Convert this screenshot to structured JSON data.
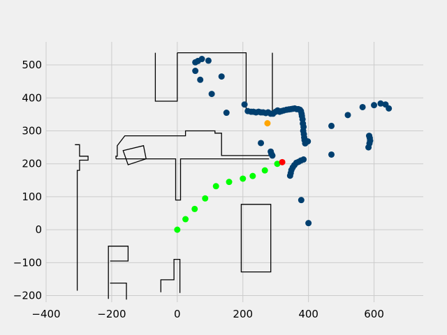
{
  "chart_data": {
    "type": "scatter",
    "title": "",
    "xlabel": "",
    "ylabel": "",
    "xlim": [
      -400,
      750
    ],
    "ylim": [
      -220,
      570
    ],
    "grid": true,
    "background": "#f0f0f0",
    "grid_color": "#cbcbcb",
    "x_ticks": [
      -400,
      -200,
      0,
      200,
      400,
      600
    ],
    "y_ticks": [
      -200,
      -100,
      0,
      100,
      200,
      300,
      400,
      500
    ],
    "x_tick_labels": [
      "−400",
      "−200",
      "0",
      "200",
      "400",
      "600"
    ],
    "y_tick_labels": [
      "−200",
      "−100",
      "0",
      "100",
      "200",
      "300",
      "400",
      "500"
    ],
    "map_outline": {
      "color": "#000000",
      "polylines": [
        [
          [
            -67,
            537
          ],
          [
            -67,
            390
          ],
          [
            0,
            390
          ],
          [
            0,
            537
          ]
        ],
        [
          [
            0,
            537
          ],
          [
            210,
            537
          ],
          [
            210,
            355
          ]
        ],
        [
          [
            290,
            537
          ],
          [
            290,
            350
          ]
        ],
        [
          [
            -312,
            258
          ],
          [
            -298,
            258
          ],
          [
            -298,
            223
          ],
          [
            -272,
            223
          ],
          [
            -272,
            211
          ],
          [
            -298,
            211
          ],
          [
            -298,
            180
          ],
          [
            -305,
            180
          ],
          [
            -305,
            -185
          ]
        ],
        [
          [
            -187,
            215
          ],
          [
            -187,
            223
          ],
          [
            -183,
            223
          ],
          [
            -183,
            255
          ],
          [
            -160,
            285
          ],
          [
            25,
            285
          ],
          [
            25,
            300
          ],
          [
            115,
            300
          ],
          [
            115,
            293
          ],
          [
            135,
            293
          ],
          [
            135,
            225
          ],
          [
            290,
            225
          ]
        ],
        [
          [
            -187,
            215
          ],
          [
            -5,
            215
          ],
          [
            -5,
            90
          ],
          [
            10,
            90
          ],
          [
            10,
            215
          ],
          [
            280,
            215
          ]
        ],
        [
          [
            -210,
            -210
          ],
          [
            -210,
            -50
          ],
          [
            -150,
            -50
          ],
          [
            -150,
            -95
          ],
          [
            -205,
            -95
          ]
        ],
        [
          [
            -205,
            -162
          ],
          [
            -155,
            -162
          ],
          [
            -155,
            -212
          ]
        ],
        [
          [
            -50,
            -190
          ],
          [
            -50,
            -152
          ],
          [
            -10,
            -152
          ],
          [
            -10,
            -90
          ],
          [
            8,
            -90
          ],
          [
            8,
            -192
          ]
        ]
      ],
      "polygons": [
        [
          [
            -165,
            240
          ],
          [
            -103,
            255
          ],
          [
            -95,
            215
          ],
          [
            -150,
            197
          ]
        ],
        [
          [
            195,
            77
          ],
          [
            285,
            77
          ],
          [
            285,
            -128
          ],
          [
            195,
            -128
          ]
        ]
      ]
    },
    "series": [
      {
        "role": "observations",
        "color": "#003f6f",
        "points": [
          [
            55,
            508
          ],
          [
            63,
            512
          ],
          [
            75,
            518
          ],
          [
            95,
            513
          ],
          [
            55,
            482
          ],
          [
            70,
            455
          ],
          [
            135,
            465
          ],
          [
            105,
            412
          ],
          [
            150,
            355
          ],
          [
            205,
            380
          ],
          [
            215,
            360
          ],
          [
            225,
            358
          ],
          [
            232,
            358
          ],
          [
            240,
            356
          ],
          [
            248,
            358
          ],
          [
            255,
            356
          ],
          [
            262,
            356
          ],
          [
            270,
            354
          ],
          [
            277,
            356
          ],
          [
            285,
            352
          ],
          [
            292,
            352
          ],
          [
            300,
            358
          ],
          [
            306,
            362
          ],
          [
            312,
            358
          ],
          [
            318,
            360
          ],
          [
            325,
            362
          ],
          [
            333,
            364
          ],
          [
            340,
            365
          ],
          [
            346,
            366
          ],
          [
            352,
            367
          ],
          [
            358,
            368
          ],
          [
            364,
            366
          ],
          [
            369,
            366
          ],
          [
            374,
            364
          ],
          [
            377,
            360
          ],
          [
            379,
            352
          ],
          [
            380,
            345
          ],
          [
            382,
            335
          ],
          [
            383,
            322
          ],
          [
            385,
            312
          ],
          [
            384,
            300
          ],
          [
            386,
            290
          ],
          [
            387,
            280
          ],
          [
            388,
            272
          ],
          [
            392,
            270
          ],
          [
            390,
            262
          ],
          [
            398,
            268
          ],
          [
            255,
            263
          ],
          [
            285,
            237
          ],
          [
            287,
            230
          ],
          [
            290,
            225
          ],
          [
            385,
            213
          ],
          [
            377,
            210
          ],
          [
            370,
            206
          ],
          [
            363,
            203
          ],
          [
            357,
            196
          ],
          [
            352,
            189
          ],
          [
            348,
            181
          ],
          [
            346,
            172
          ],
          [
            344,
            164
          ],
          [
            378,
            90
          ],
          [
            400,
            20
          ],
          [
            470,
            315
          ],
          [
            470,
            228
          ],
          [
            520,
            348
          ],
          [
            565,
            372
          ],
          [
            600,
            378
          ],
          [
            620,
            383
          ],
          [
            635,
            380
          ],
          [
            645,
            368
          ],
          [
            585,
            285
          ],
          [
            587,
            278
          ],
          [
            588,
            270
          ],
          [
            586,
            262
          ],
          [
            583,
            250
          ]
        ]
      },
      {
        "role": "path",
        "color": "#00ff00",
        "points": [
          [
            0,
            0
          ],
          [
            25,
            32
          ],
          [
            53,
            63
          ],
          [
            85,
            95
          ],
          [
            118,
            132
          ],
          [
            158,
            145
          ],
          [
            200,
            155
          ],
          [
            230,
            163
          ],
          [
            267,
            180
          ],
          [
            305,
            200
          ]
        ]
      },
      {
        "role": "current-position",
        "color": "#ff0000",
        "points": [
          [
            320,
            205
          ]
        ]
      },
      {
        "role": "target",
        "color": "#ffa500",
        "points": [
          [
            275,
            323
          ]
        ]
      }
    ]
  }
}
